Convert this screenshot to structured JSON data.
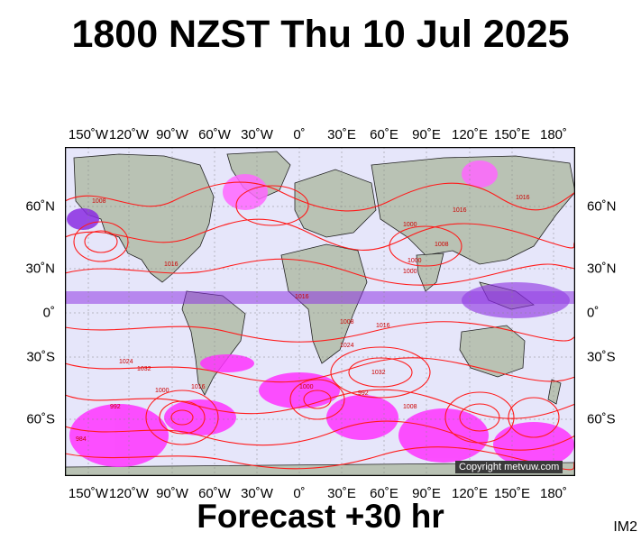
{
  "header": {
    "title": "1800 NZST Thu 10 Jul 2025"
  },
  "footer": {
    "forecast": "Forecast +30 hr",
    "image_code": "IM2"
  },
  "map": {
    "longitude_labels": [
      "150˚W",
      "120˚W",
      "90˚W",
      "60˚W",
      "30˚W",
      "0˚",
      "30˚E",
      "60˚E",
      "90˚E",
      "120˚E",
      "150˚E",
      "180˚"
    ],
    "latitude_labels": [
      "60˚N",
      "30˚N",
      "0˚",
      "30˚S",
      "60˚S"
    ],
    "isobar_labels": [
      "1008",
      "1016",
      "1016",
      "1000",
      "1008",
      "1016",
      "1024",
      "1032",
      "1024",
      "1016",
      "1016",
      "1008",
      "1000",
      "1000",
      "1016",
      "1032",
      "1000",
      "992",
      "1008",
      "1000",
      "984",
      "992"
    ],
    "copyright": "Copyright metvuw.com",
    "colors": {
      "isobar": "#ff1a1a",
      "ocean": "#e6e6fa",
      "land": "#b9c2b4",
      "rain_magenta": "#ff33ff",
      "rain_purple": "#8a2be2"
    }
  }
}
